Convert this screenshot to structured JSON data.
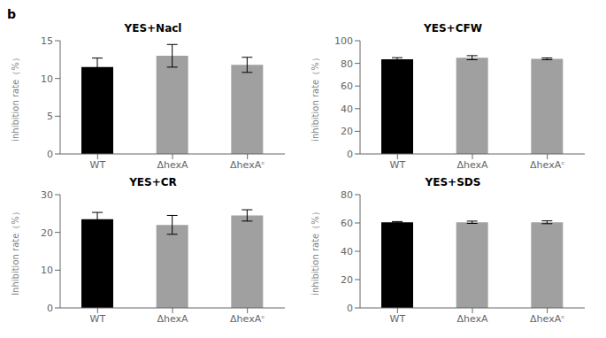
{
  "chart_data": [
    {
      "type": "bar",
      "title": "YES+Nacl",
      "categories": [
        "WT",
        "ΔhexA",
        "ΔhexAᶜ"
      ],
      "values": [
        11.5,
        13.0,
        11.8
      ],
      "errors": [
        1.2,
        1.5,
        1.0
      ],
      "colors": [
        "#000000",
        "#a0a0a0",
        "#a0a0a0"
      ],
      "ylabel": "inhibition rate（%）",
      "ylim": [
        0,
        15
      ],
      "yticks": [
        0,
        5,
        10,
        15
      ],
      "grid": false
    },
    {
      "type": "bar",
      "title": "YES+CFW",
      "categories": [
        "WT",
        "ΔhexA",
        "ΔhexAᶜ"
      ],
      "values": [
        83.5,
        85.0,
        84.0
      ],
      "errors": [
        1.5,
        1.8,
        0.8
      ],
      "colors": [
        "#000000",
        "#a0a0a0",
        "#a0a0a0"
      ],
      "ylabel": "inhibition rate（%）",
      "ylim": [
        0,
        100
      ],
      "yticks": [
        0,
        20,
        40,
        60,
        80,
        100
      ],
      "grid": false
    },
    {
      "type": "bar",
      "title": "YES+CR",
      "categories": [
        "WT",
        "ΔhexA",
        "ΔhexAᶜ"
      ],
      "values": [
        23.5,
        22.0,
        24.5
      ],
      "errors": [
        1.8,
        2.5,
        1.5
      ],
      "colors": [
        "#000000",
        "#a0a0a0",
        "#a0a0a0"
      ],
      "ylabel": "Inhibition rate（%）",
      "ylim": [
        0,
        30
      ],
      "yticks": [
        0,
        10,
        20,
        30
      ],
      "grid": false
    },
    {
      "type": "bar",
      "title": "YES+SDS",
      "categories": [
        "WT",
        "ΔhexA",
        "ΔhexAᶜ"
      ],
      "values": [
        60.5,
        60.5,
        60.5
      ],
      "errors": [
        0.5,
        0.8,
        1.0
      ],
      "colors": [
        "#000000",
        "#a0a0a0",
        "#a0a0a0"
      ],
      "ylabel": "inhibition rate（%）",
      "ylim": [
        0,
        80
      ],
      "yticks": [
        0,
        20,
        40,
        60,
        80
      ],
      "grid": false
    }
  ],
  "annotations": [
    "b"
  ]
}
